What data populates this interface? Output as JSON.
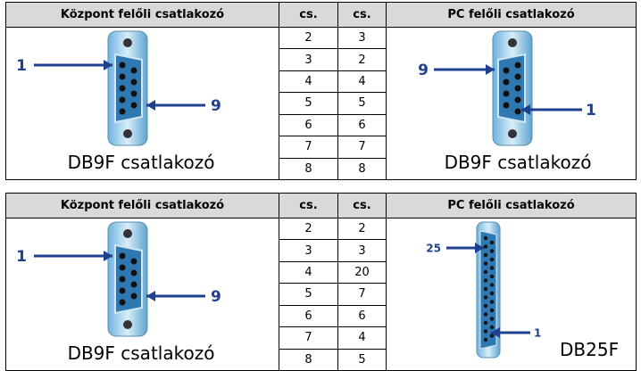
{
  "tables": [
    {
      "header": [
        "Központ felőli csatlakozó",
        "cs.",
        "cs.",
        "PC felőli csatlakozó"
      ],
      "rows": [
        [
          2,
          3
        ],
        [
          3,
          2
        ],
        [
          4,
          4
        ],
        [
          5,
          5
        ],
        [
          6,
          6
        ],
        [
          7,
          7
        ],
        [
          8,
          8
        ]
      ],
      "left": {
        "kind": "db9",
        "label_a": "1",
        "label_b": "9",
        "caption": "DB9F csatlakozó"
      },
      "right": {
        "kind": "db9m",
        "label_a": "9",
        "label_b": "1",
        "caption": "DB9F csatlakozó"
      }
    },
    {
      "header": [
        "Központ felőli csatlakozó",
        "cs.",
        "cs.",
        "PC felőli csatlakozó"
      ],
      "rows": [
        [
          2,
          2
        ],
        [
          3,
          3
        ],
        [
          4,
          20
        ],
        [
          5,
          7
        ],
        [
          6,
          6
        ],
        [
          7,
          4
        ],
        [
          8,
          5
        ]
      ],
      "left": {
        "kind": "db9",
        "label_a": "1",
        "label_b": "9",
        "caption": "DB9F csatlakozó"
      },
      "right": {
        "kind": "db25",
        "label_a": "25",
        "label_b": "1",
        "caption": "DB25F"
      }
    }
  ]
}
